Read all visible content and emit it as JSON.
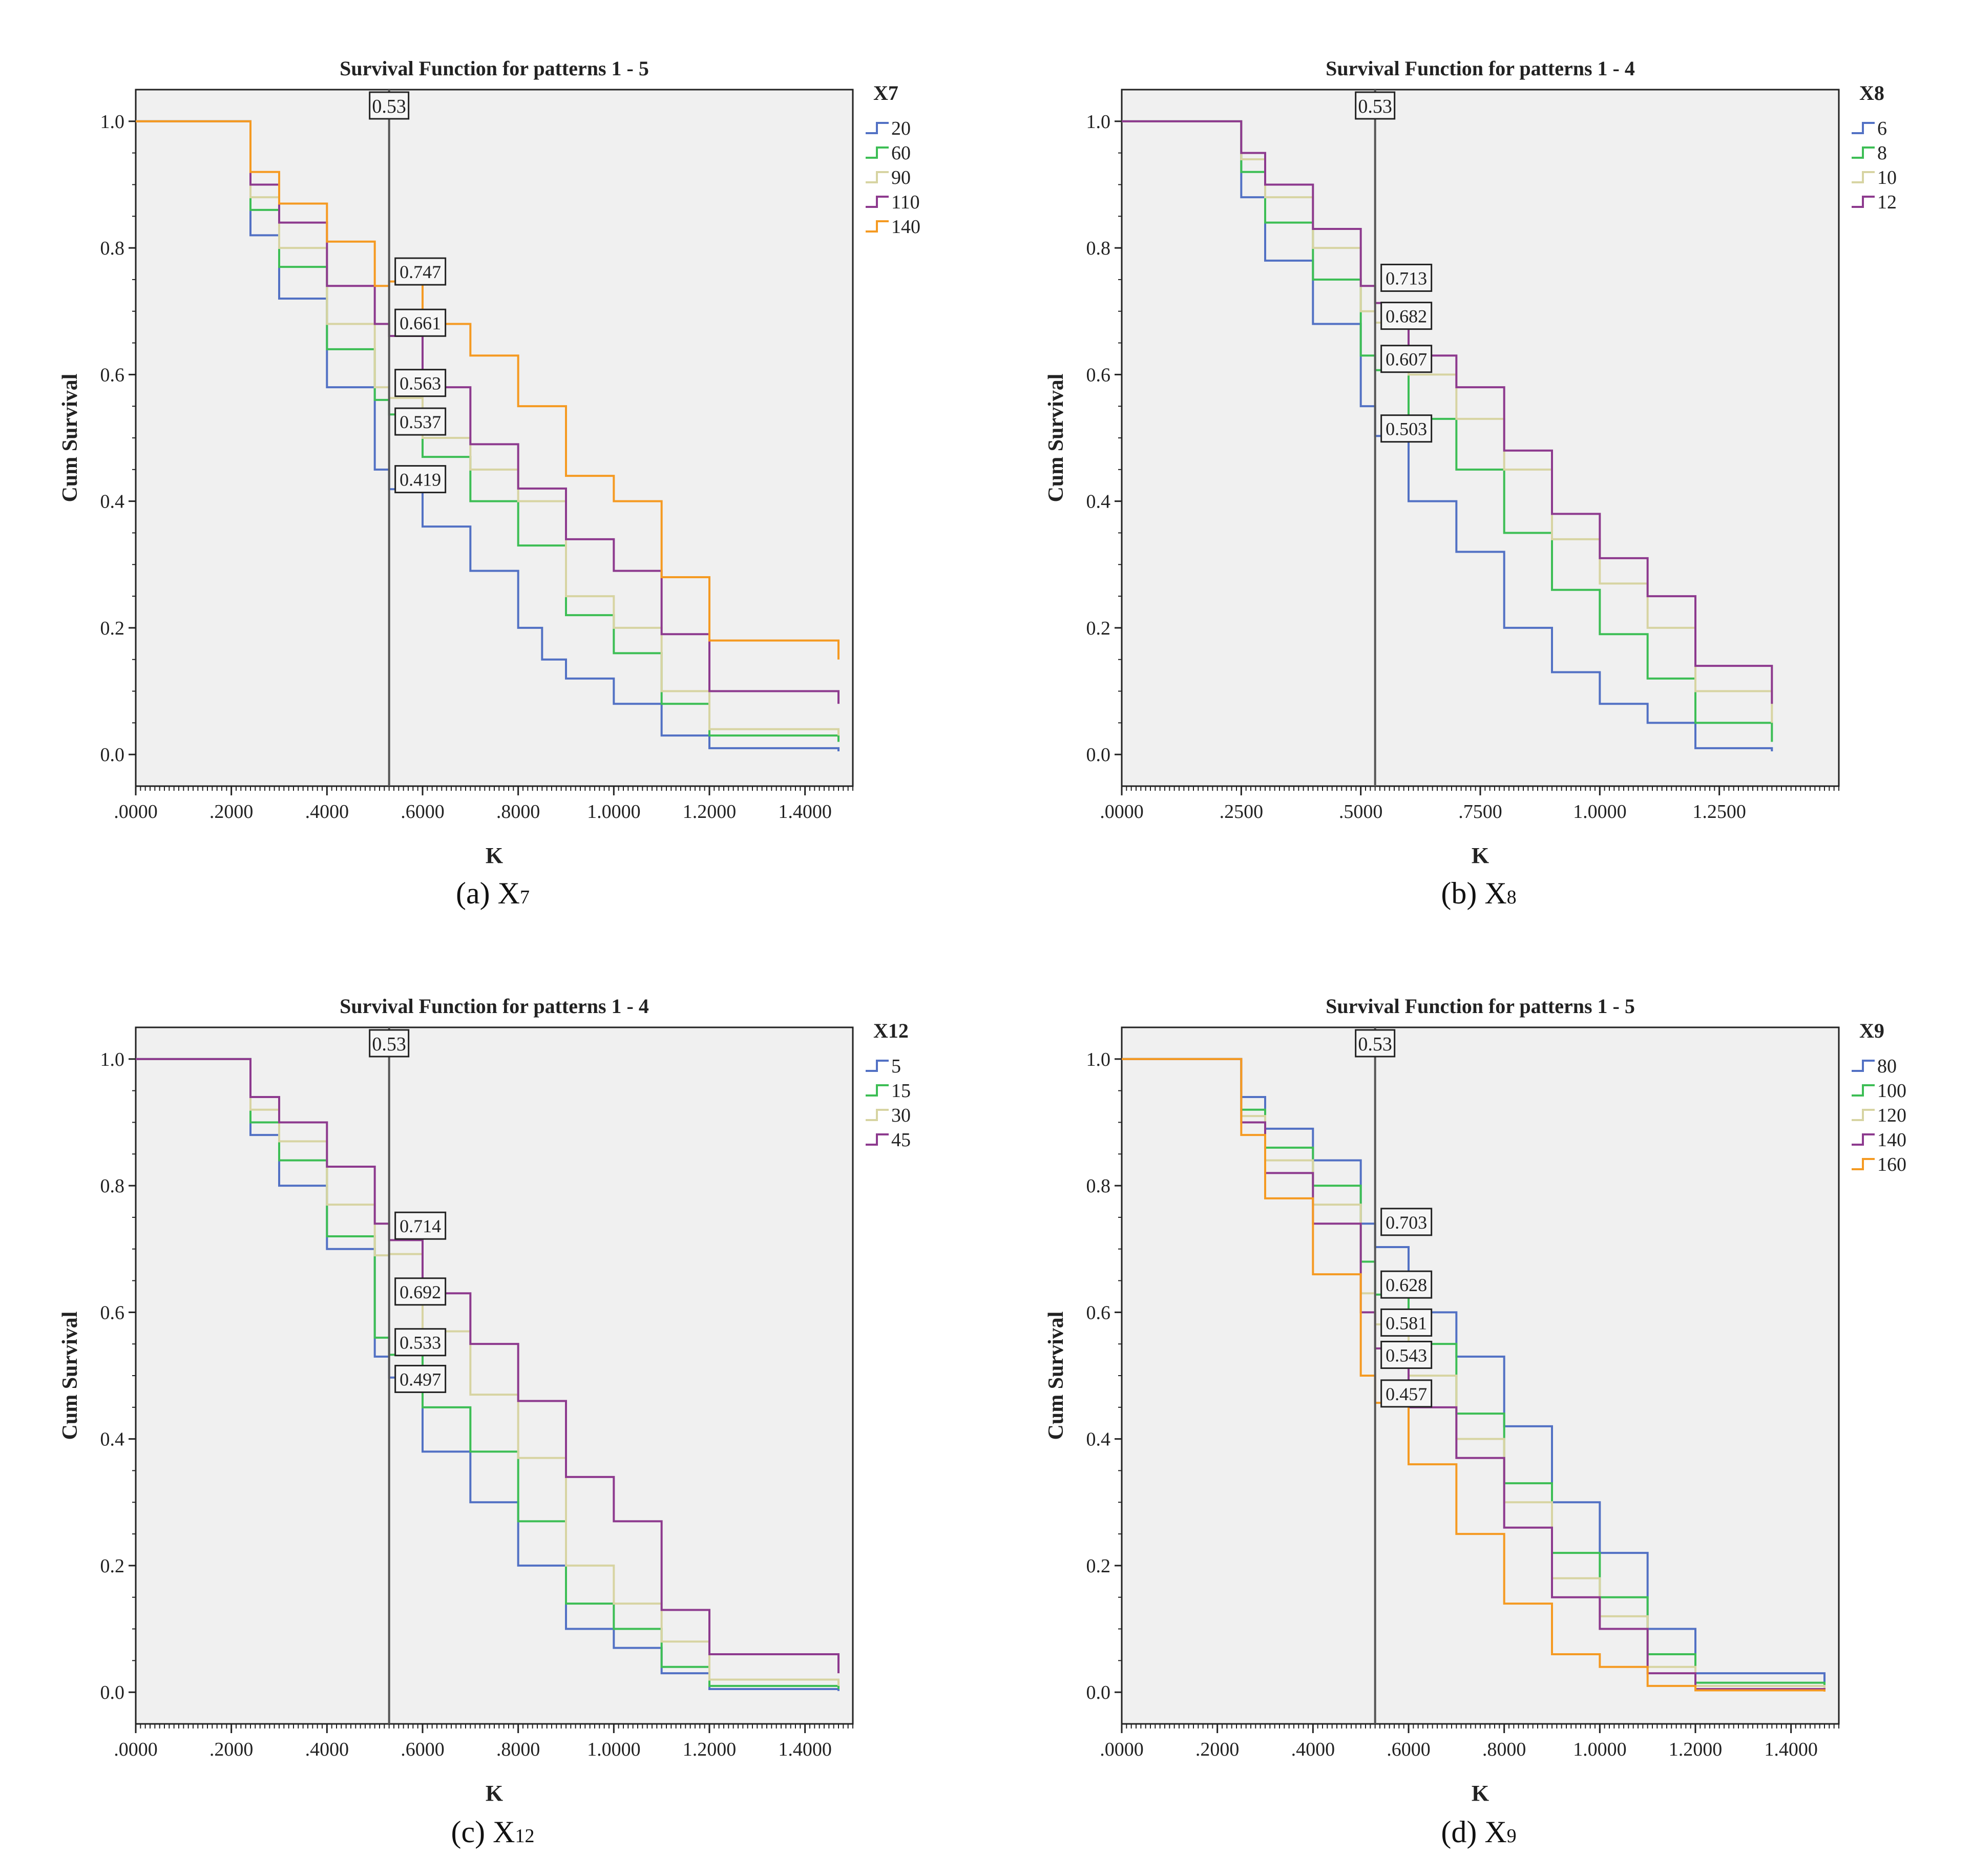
{
  "colors": {
    "plot_bg": "#f0f0f0",
    "axis": "#222222",
    "ref_line": "#555555",
    "series": [
      "#5271c4",
      "#3dbe55",
      "#d7d4a2",
      "#8d3a8e",
      "#f59a22"
    ]
  },
  "panels": [
    {
      "caption": {
        "prefix": "(a) X",
        "sub": "7"
      },
      "chart_data": {
        "type": "line",
        "step": true,
        "title": "Survival Function for patterns 1 - 5",
        "xlabel": "K",
        "ylabel": "Cum Survival",
        "xlim": [
          0,
          1.5
        ],
        "ylim": [
          -0.05,
          1.05
        ],
        "xticks": [
          0,
          0.2,
          0.4,
          0.6,
          0.8,
          1.0,
          1.2,
          1.4
        ],
        "xtick_labels": [
          ".0000",
          ".2000",
          ".4000",
          ".6000",
          ".8000",
          "1.0000",
          "1.2000",
          "1.4000"
        ],
        "yticks": [
          0,
          0.2,
          0.4,
          0.6,
          0.8,
          1.0
        ],
        "ytick_labels": [
          "0.0",
          "0.2",
          "0.4",
          "0.6",
          "0.8",
          "1.0"
        ],
        "legend_title": "X7",
        "ref_x": 0.53,
        "ref_label": "0.53",
        "series": [
          {
            "name": "20",
            "x": [
              0,
              0.2,
              0.24,
              0.3,
              0.4,
              0.5,
              0.53,
              0.6,
              0.7,
              0.8,
              0.85,
              0.9,
              1.0,
              1.1,
              1.2,
              1.47
            ],
            "y": [
              1.0,
              1.0,
              0.82,
              0.72,
              0.58,
              0.45,
              0.419,
              0.36,
              0.29,
              0.2,
              0.15,
              0.12,
              0.08,
              0.03,
              0.01,
              0.005
            ]
          },
          {
            "name": "60",
            "x": [
              0,
              0.2,
              0.24,
              0.3,
              0.4,
              0.5,
              0.53,
              0.6,
              0.7,
              0.8,
              0.9,
              1.0,
              1.1,
              1.2,
              1.47
            ],
            "y": [
              1.0,
              1.0,
              0.86,
              0.77,
              0.64,
              0.56,
              0.537,
              0.47,
              0.4,
              0.33,
              0.22,
              0.16,
              0.08,
              0.03,
              0.02
            ]
          },
          {
            "name": "90",
            "x": [
              0,
              0.2,
              0.24,
              0.3,
              0.4,
              0.5,
              0.53,
              0.6,
              0.7,
              0.8,
              0.9,
              1.0,
              1.1,
              1.2,
              1.47
            ],
            "y": [
              1.0,
              1.0,
              0.88,
              0.8,
              0.68,
              0.58,
              0.563,
              0.5,
              0.45,
              0.4,
              0.25,
              0.2,
              0.1,
              0.04,
              0.03
            ]
          },
          {
            "name": "110",
            "x": [
              0,
              0.2,
              0.24,
              0.3,
              0.4,
              0.5,
              0.53,
              0.6,
              0.7,
              0.8,
              0.9,
              1.0,
              1.1,
              1.2,
              1.47
            ],
            "y": [
              1.0,
              1.0,
              0.9,
              0.84,
              0.74,
              0.68,
              0.661,
              0.58,
              0.49,
              0.42,
              0.34,
              0.29,
              0.19,
              0.1,
              0.08
            ]
          },
          {
            "name": "140",
            "x": [
              0,
              0.2,
              0.24,
              0.3,
              0.4,
              0.5,
              0.53,
              0.6,
              0.7,
              0.8,
              0.9,
              1.0,
              1.1,
              1.2,
              1.47
            ],
            "y": [
              1.0,
              1.0,
              0.92,
              0.87,
              0.81,
              0.74,
              0.747,
              0.68,
              0.63,
              0.55,
              0.44,
              0.4,
              0.28,
              0.18,
              0.15
            ]
          }
        ],
        "labels": [
          {
            "text": "0.747",
            "y": 0.762
          },
          {
            "text": "0.661",
            "y": 0.681
          },
          {
            "text": "0.563",
            "y": 0.586
          },
          {
            "text": "0.537",
            "y": 0.525
          },
          {
            "text": "0.419",
            "y": 0.434
          }
        ]
      }
    },
    {
      "caption": {
        "prefix": "(b) X",
        "sub": "8"
      },
      "chart_data": {
        "type": "line",
        "step": true,
        "title": "Survival Function for patterns 1 - 4",
        "xlabel": "K",
        "ylabel": "Cum Survival",
        "xlim": [
          0,
          1.5
        ],
        "ylim": [
          -0.05,
          1.05
        ],
        "xticks": [
          0,
          0.25,
          0.5,
          0.75,
          1.0,
          1.25
        ],
        "xtick_labels": [
          ".0000",
          ".2500",
          ".5000",
          ".7500",
          "1.0000",
          "1.2500"
        ],
        "yticks": [
          0,
          0.2,
          0.4,
          0.6,
          0.8,
          1.0
        ],
        "ytick_labels": [
          "0.0",
          "0.2",
          "0.4",
          "0.6",
          "0.8",
          "1.0"
        ],
        "legend_title": "X8",
        "ref_x": 0.53,
        "ref_label": "0.53",
        "series": [
          {
            "name": "6",
            "x": [
              0,
              0.2,
              0.25,
              0.3,
              0.4,
              0.5,
              0.53,
              0.6,
              0.7,
              0.8,
              0.9,
              1.0,
              1.1,
              1.2,
              1.36
            ],
            "y": [
              1.0,
              1.0,
              0.88,
              0.78,
              0.68,
              0.55,
              0.503,
              0.4,
              0.32,
              0.2,
              0.13,
              0.08,
              0.05,
              0.01,
              0.005
            ]
          },
          {
            "name": "8",
            "x": [
              0,
              0.2,
              0.25,
              0.3,
              0.4,
              0.5,
              0.53,
              0.6,
              0.7,
              0.8,
              0.9,
              1.0,
              1.1,
              1.2,
              1.36
            ],
            "y": [
              1.0,
              1.0,
              0.92,
              0.84,
              0.75,
              0.63,
              0.607,
              0.53,
              0.45,
              0.35,
              0.26,
              0.19,
              0.12,
              0.05,
              0.02
            ]
          },
          {
            "name": "10",
            "x": [
              0,
              0.2,
              0.25,
              0.3,
              0.4,
              0.5,
              0.53,
              0.6,
              0.7,
              0.8,
              0.9,
              1.0,
              1.1,
              1.2,
              1.36
            ],
            "y": [
              1.0,
              1.0,
              0.94,
              0.88,
              0.8,
              0.7,
              0.682,
              0.6,
              0.53,
              0.45,
              0.34,
              0.27,
              0.2,
              0.1,
              0.05
            ]
          },
          {
            "name": "12",
            "x": [
              0,
              0.2,
              0.25,
              0.3,
              0.4,
              0.5,
              0.53,
              0.6,
              0.7,
              0.8,
              0.9,
              1.0,
              1.1,
              1.2,
              1.36
            ],
            "y": [
              1.0,
              1.0,
              0.95,
              0.9,
              0.83,
              0.74,
              0.713,
              0.63,
              0.58,
              0.48,
              0.38,
              0.31,
              0.25,
              0.14,
              0.08
            ]
          }
        ],
        "labels": [
          {
            "text": "0.713",
            "y": 0.752
          },
          {
            "text": "0.682",
            "y": 0.692
          },
          {
            "text": "0.607",
            "y": 0.624
          },
          {
            "text": "0.503",
            "y": 0.514
          }
        ]
      }
    },
    {
      "caption": {
        "prefix": "(c) X",
        "sub": "12"
      },
      "chart_data": {
        "type": "line",
        "step": true,
        "title": "Survival Function for patterns 1 - 4",
        "xlabel": "K",
        "ylabel": "Cum Survival",
        "xlim": [
          0,
          1.5
        ],
        "ylim": [
          -0.05,
          1.05
        ],
        "xticks": [
          0,
          0.2,
          0.4,
          0.6,
          0.8,
          1.0,
          1.2,
          1.4
        ],
        "xtick_labels": [
          ".0000",
          ".2000",
          ".4000",
          ".6000",
          ".8000",
          "1.0000",
          "1.2000",
          "1.4000"
        ],
        "yticks": [
          0,
          0.2,
          0.4,
          0.6,
          0.8,
          1.0
        ],
        "ytick_labels": [
          "0.0",
          "0.2",
          "0.4",
          "0.6",
          "0.8",
          "1.0"
        ],
        "legend_title": "X12",
        "ref_x": 0.53,
        "ref_label": "0.53",
        "series": [
          {
            "name": "5",
            "x": [
              0,
              0.2,
              0.24,
              0.3,
              0.4,
              0.5,
              0.53,
              0.6,
              0.7,
              0.8,
              0.9,
              1.0,
              1.1,
              1.2,
              1.47
            ],
            "y": [
              1.0,
              1.0,
              0.88,
              0.8,
              0.7,
              0.53,
              0.497,
              0.38,
              0.3,
              0.2,
              0.1,
              0.07,
              0.03,
              0.005,
              0.002
            ]
          },
          {
            "name": "15",
            "x": [
              0,
              0.2,
              0.24,
              0.3,
              0.4,
              0.5,
              0.53,
              0.6,
              0.7,
              0.8,
              0.9,
              1.0,
              1.1,
              1.2,
              1.47
            ],
            "y": [
              1.0,
              1.0,
              0.9,
              0.84,
              0.72,
              0.56,
              0.533,
              0.45,
              0.38,
              0.27,
              0.14,
              0.1,
              0.04,
              0.01,
              0.005
            ]
          },
          {
            "name": "30",
            "x": [
              0,
              0.2,
              0.24,
              0.3,
              0.4,
              0.5,
              0.53,
              0.6,
              0.7,
              0.8,
              0.9,
              1.0,
              1.1,
              1.2,
              1.47
            ],
            "y": [
              1.0,
              1.0,
              0.92,
              0.87,
              0.77,
              0.69,
              0.692,
              0.57,
              0.47,
              0.37,
              0.2,
              0.14,
              0.08,
              0.02,
              0.01
            ]
          },
          {
            "name": "45",
            "x": [
              0,
              0.2,
              0.24,
              0.3,
              0.4,
              0.5,
              0.53,
              0.6,
              0.7,
              0.8,
              0.9,
              1.0,
              1.1,
              1.2,
              1.47
            ],
            "y": [
              1.0,
              1.0,
              0.94,
              0.9,
              0.83,
              0.74,
              0.714,
              0.63,
              0.55,
              0.46,
              0.34,
              0.27,
              0.13,
              0.06,
              0.03
            ]
          }
        ],
        "labels": [
          {
            "text": "0.714",
            "y": 0.736
          },
          {
            "text": "0.692",
            "y": 0.632
          },
          {
            "text": "0.533",
            "y": 0.552
          },
          {
            "text": "0.497",
            "y": 0.494
          }
        ]
      }
    },
    {
      "caption": {
        "prefix": "(d) X",
        "sub": "9"
      },
      "chart_data": {
        "type": "line",
        "step": true,
        "title": "Survival Function for patterns 1 - 5",
        "xlabel": "K",
        "ylabel": "Cum Survival",
        "xlim": [
          0,
          1.5
        ],
        "ylim": [
          -0.05,
          1.05
        ],
        "xticks": [
          0,
          0.2,
          0.4,
          0.6,
          0.8,
          1.0,
          1.2,
          1.4
        ],
        "xtick_labels": [
          ".0000",
          ".2000",
          ".4000",
          ".6000",
          ".8000",
          "1.0000",
          "1.2000",
          "1.4000"
        ],
        "yticks": [
          0,
          0.2,
          0.4,
          0.6,
          0.8,
          1.0
        ],
        "ytick_labels": [
          "0.0",
          "0.2",
          "0.4",
          "0.6",
          "0.8",
          "1.0"
        ],
        "legend_title": "X9",
        "ref_x": 0.53,
        "ref_label": "0.53",
        "series": [
          {
            "name": "80",
            "x": [
              0,
              0.2,
              0.25,
              0.3,
              0.4,
              0.5,
              0.53,
              0.6,
              0.7,
              0.8,
              0.9,
              1.0,
              1.1,
              1.2,
              1.47
            ],
            "y": [
              1.0,
              1.0,
              0.94,
              0.89,
              0.84,
              0.74,
              0.703,
              0.6,
              0.53,
              0.42,
              0.3,
              0.22,
              0.1,
              0.03,
              0.01
            ]
          },
          {
            "name": "100",
            "x": [
              0,
              0.2,
              0.25,
              0.3,
              0.4,
              0.5,
              0.53,
              0.6,
              0.7,
              0.8,
              0.9,
              1.0,
              1.1,
              1.2,
              1.47
            ],
            "y": [
              1.0,
              1.0,
              0.92,
              0.86,
              0.8,
              0.68,
              0.628,
              0.55,
              0.44,
              0.33,
              0.22,
              0.15,
              0.06,
              0.015,
              0.005
            ]
          },
          {
            "name": "120",
            "x": [
              0,
              0.2,
              0.25,
              0.3,
              0.4,
              0.5,
              0.53,
              0.6,
              0.7,
              0.8,
              0.9,
              1.0,
              1.1,
              1.2,
              1.47
            ],
            "y": [
              1.0,
              1.0,
              0.91,
              0.84,
              0.77,
              0.63,
              0.581,
              0.5,
              0.4,
              0.3,
              0.18,
              0.12,
              0.04,
              0.01,
              0.003
            ]
          },
          {
            "name": "140",
            "x": [
              0,
              0.2,
              0.25,
              0.3,
              0.4,
              0.5,
              0.53,
              0.6,
              0.7,
              0.8,
              0.9,
              1.0,
              1.1,
              1.2,
              1.47
            ],
            "y": [
              1.0,
              1.0,
              0.9,
              0.82,
              0.74,
              0.6,
              0.543,
              0.45,
              0.37,
              0.26,
              0.15,
              0.1,
              0.03,
              0.005,
              0.002
            ]
          },
          {
            "name": "160",
            "x": [
              0,
              0.2,
              0.25,
              0.3,
              0.4,
              0.5,
              0.53,
              0.6,
              0.7,
              0.8,
              0.9,
              1.0,
              1.1,
              1.2,
              1.47
            ],
            "y": [
              1.0,
              1.0,
              0.88,
              0.78,
              0.66,
              0.5,
              0.457,
              0.36,
              0.25,
              0.14,
              0.06,
              0.04,
              0.01,
              0.003,
              0.001
            ]
          }
        ],
        "labels": [
          {
            "text": "0.703",
            "y": 0.742
          },
          {
            "text": "0.628",
            "y": 0.643
          },
          {
            "text": "0.581",
            "y": 0.583
          },
          {
            "text": "0.543",
            "y": 0.532
          },
          {
            "text": "0.457",
            "y": 0.471
          }
        ]
      }
    }
  ]
}
